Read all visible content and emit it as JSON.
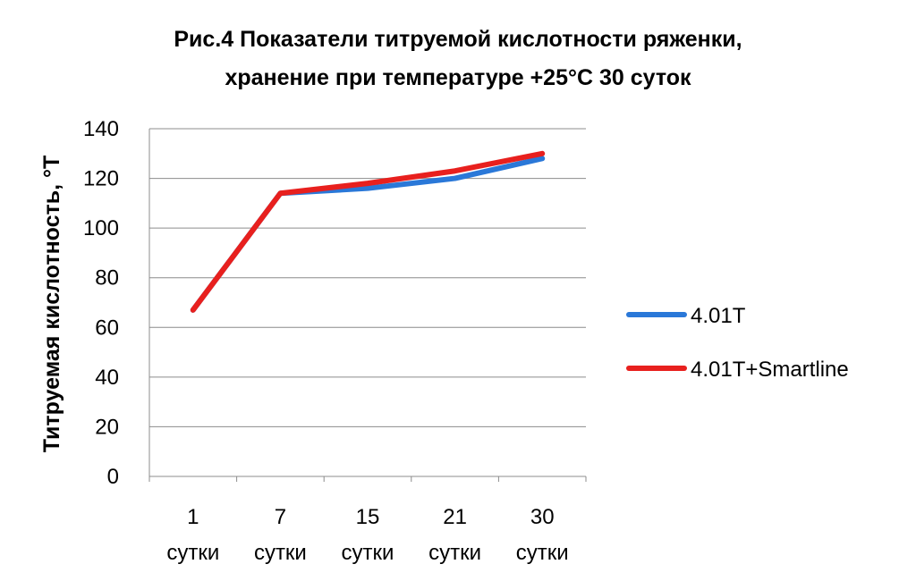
{
  "chart_data": {
    "type": "line",
    "title_line1": "Рис.4 Показатели титруемой кислотности ряженки,",
    "title_line2": "хранение при температуре +25°С 30 суток",
    "ylabel": "Титруемая кислотность, °Т",
    "xlabel": "",
    "ylim": [
      0,
      140
    ],
    "yticks": [
      "0",
      "20",
      "40",
      "60",
      "80",
      "100",
      "120",
      "140"
    ],
    "categories": [
      {
        "num": "1",
        "unit": "сутки"
      },
      {
        "num": "7",
        "unit": "сутки"
      },
      {
        "num": "15",
        "unit": "сутки"
      },
      {
        "num": "21",
        "unit": "сутки"
      },
      {
        "num": "30",
        "unit": "сутки"
      }
    ],
    "series": [
      {
        "name": "4.01Т",
        "color": "#2a78d8",
        "values": [
          67,
          114,
          116,
          120,
          128
        ]
      },
      {
        "name": "4.01Т+Smartline",
        "color": "#e8201e",
        "values": [
          67,
          114,
          118,
          123,
          130
        ]
      }
    ],
    "grid": true,
    "legend_position": "right"
  }
}
